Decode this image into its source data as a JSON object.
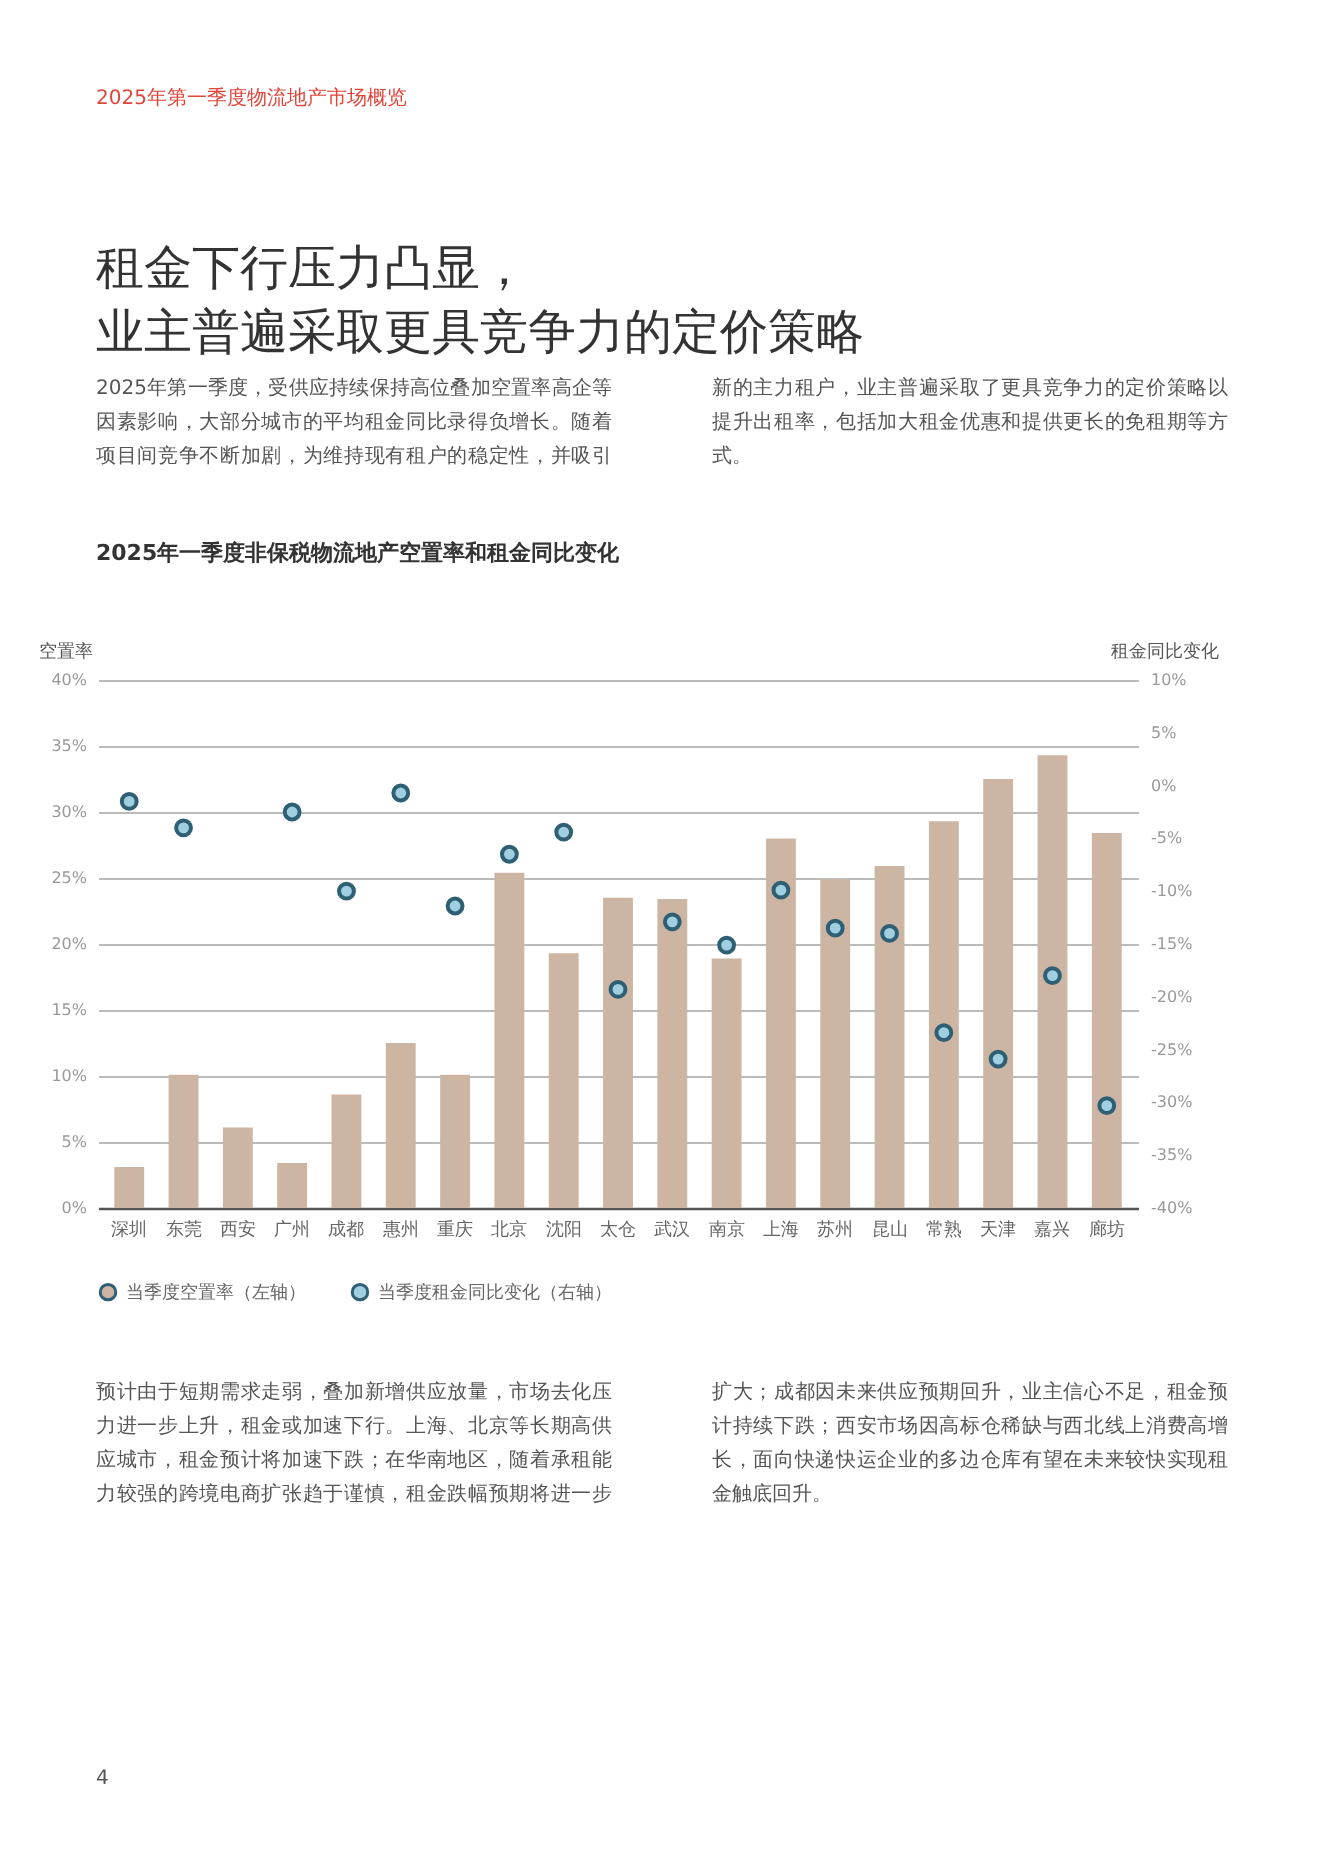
{
  "chart_data": {
    "type": "bar",
    "title": "租金下行压力凸显，业主普遍采取更具竞争力的定价策略",
    "subtitle": "2025年一季度非保税物流地产空置率和租金同比变化",
    "annotations": [
      "2025年第一季度物流地产市场概览",
      "2025年第一季度，受供应持续保持高位叠加空置率高企等因素影响，大部分城市的平均租金同比录得负增长。随着项目间竞争不断加剧，为维持现有租户的稳定性，并吸引新的主力租户，业主普遍采取了更具竞争力的定价策略以提升出租率，包括加大租金优惠和提供更长的免租期等方式。",
      "预计由于短期需求走弱，叠加新增供应放量，市场去化压力进一步上升，租金或加速下行。上海、北京等长期高供应城市，租金预计将加速下跌；在华南地区，随着承租能力较强的跨境电商扩张趋于谨慎，租金跌幅预期将进一步扩大；成都因未来供应预期回升，业主信心不足，租金预计持续下跌；西安市场因高标仓稀缺与西北线上消费高增长，面向快递快运企业的多边仓库有望在未来较快实现租金触底回升。",
      "4"
    ],
    "ylabel": "空置率",
    "y2label": "租金同比变化",
    "categories": [
      "深圳",
      "东莞",
      "西安",
      "广州",
      "成都",
      "惠州",
      "重庆",
      "北京",
      "沈阳",
      "太仓",
      "武汉",
      "南京",
      "上海",
      "苏州",
      "昆山",
      "常熟",
      "天津",
      "嘉兴",
      "廊坊"
    ],
    "series": [
      {
        "name": "当季度空置率（左轴）",
        "type": "bar",
        "color": "#cdb5a3",
        "values": [
          3.1,
          10.1,
          6.1,
          3.4,
          8.6,
          12.5,
          10.1,
          25.4,
          19.3,
          23.5,
          23.4,
          18.9,
          28.0,
          24.9,
          25.9,
          29.3,
          32.5,
          34.3,
          28.4
        ]
      },
      {
        "name": "当季度租金同比变化（右轴）",
        "type": "scatter",
        "axis": "y2",
        "color": "#9fcfe0",
        "values": [
          -1.5,
          -4.0,
          null,
          -2.5,
          -10.0,
          -0.7,
          -11.4,
          -6.5,
          -4.4,
          -19.3,
          -12.9,
          -15.1,
          -9.9,
          -13.5,
          -14.0,
          -23.4,
          -25.9,
          -18.0,
          -30.3
        ]
      }
    ],
    "ylim": [
      0,
      40
    ],
    "yticks": [
      {
        "value": 0,
        "label": "0%"
      },
      {
        "value": 5,
        "label": "5%"
      },
      {
        "value": 10,
        "label": "10%"
      },
      {
        "value": 15,
        "label": "15%"
      },
      {
        "value": 20,
        "label": "20%"
      },
      {
        "value": 25,
        "label": "25%"
      },
      {
        "value": 30,
        "label": "30%"
      },
      {
        "value": 35,
        "label": "35%"
      },
      {
        "value": 40,
        "label": "40%"
      }
    ],
    "y2lim": [
      -40,
      10
    ],
    "y2ticks": [
      {
        "value": -40,
        "label": "-40%"
      },
      {
        "value": -35,
        "label": "-35%"
      },
      {
        "value": -30,
        "label": "-30%"
      },
      {
        "value": -25,
        "label": "-25%"
      },
      {
        "value": -20,
        "label": "-20%"
      },
      {
        "value": -15,
        "label": "-15%"
      },
      {
        "value": -10,
        "label": "-10%"
      },
      {
        "value": -5,
        "label": "-5%"
      },
      {
        "value": 0,
        "label": "0%"
      },
      {
        "value": 5,
        "label": "5%"
      },
      {
        "value": 10,
        "label": "10%"
      }
    ],
    "grid": "y",
    "legend": "bottom left",
    "marker": "circle"
  }
}
